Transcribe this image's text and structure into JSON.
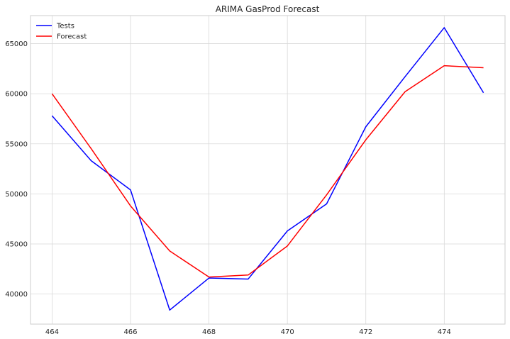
{
  "chart_data": {
    "type": "line",
    "title": "ARIMA GasProd Forecast",
    "xlabel": "",
    "ylabel": "",
    "xlim": [
      463.45,
      475.55
    ],
    "ylim": [
      37000,
      67800
    ],
    "xticks": [
      464,
      466,
      468,
      470,
      472,
      474
    ],
    "yticks": [
      40000,
      45000,
      50000,
      55000,
      60000,
      65000
    ],
    "grid": true,
    "legend_position": "top-left",
    "series": [
      {
        "name": "Tests",
        "color": "#0000ff",
        "x": [
          464,
          465,
          466,
          467,
          468,
          469,
          470,
          471,
          472,
          473,
          474,
          475
        ],
        "values": [
          57800,
          53300,
          50400,
          38400,
          41600,
          41500,
          46300,
          49000,
          56700,
          61700,
          66600,
          60100
        ]
      },
      {
        "name": "Forecast",
        "color": "#ff0000",
        "x": [
          464,
          465,
          466,
          467,
          468,
          469,
          470,
          471,
          472,
          473,
          474,
          475
        ],
        "values": [
          60000,
          54500,
          48800,
          44300,
          41700,
          41900,
          44800,
          49900,
          55400,
          60200,
          62800,
          62600
        ]
      }
    ]
  }
}
